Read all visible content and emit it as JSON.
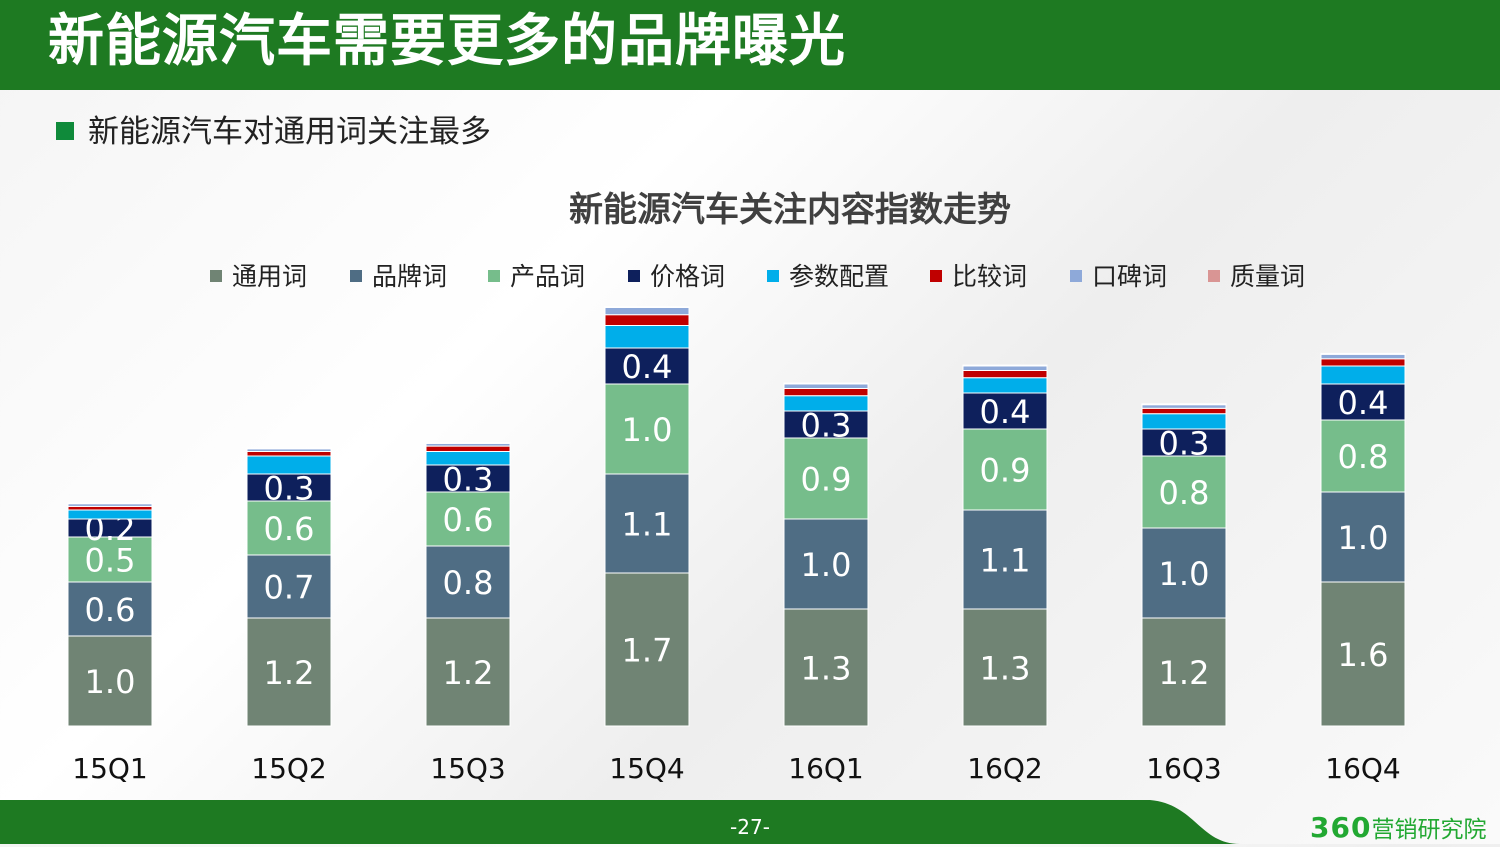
{
  "header": {
    "title": "新能源汽车需要更多的品牌曝光"
  },
  "bullet": {
    "text": "新能源汽车对通用词关注最多"
  },
  "footer": {
    "page": "-27-",
    "brand_number": "360",
    "brand_text": "营销研究院"
  },
  "colors": {
    "header_bg": "#1e7a22",
    "bullet": "#0f8a3a",
    "series": [
      "#708474",
      "#4f6d84",
      "#76bd8b",
      "#0e205c",
      "#00aeea",
      "#c00000",
      "#8ea9d9",
      "#d99594"
    ]
  },
  "chart_data": {
    "type": "bar",
    "stacked": true,
    "title": "新能源汽车关注内容指数走势",
    "xlabel": "",
    "ylabel": "",
    "legend_position": "top",
    "grid": false,
    "categories": [
      "15Q1",
      "15Q2",
      "15Q3",
      "15Q4",
      "16Q1",
      "16Q2",
      "16Q3",
      "16Q4"
    ],
    "series": [
      {
        "name": "通用词",
        "values": [
          1.0,
          1.2,
          1.2,
          1.7,
          1.3,
          1.3,
          1.2,
          1.6
        ],
        "show_labels": true
      },
      {
        "name": "品牌词",
        "values": [
          0.6,
          0.7,
          0.8,
          1.1,
          1.0,
          1.1,
          1.0,
          1.0
        ],
        "show_labels": true
      },
      {
        "name": "产品词",
        "values": [
          0.5,
          0.6,
          0.6,
          1.0,
          0.9,
          0.9,
          0.8,
          0.8
        ],
        "show_labels": true
      },
      {
        "name": "价格词",
        "values": [
          0.2,
          0.3,
          0.3,
          0.4,
          0.3,
          0.4,
          0.3,
          0.4
        ],
        "show_labels": true
      },
      {
        "name": "参数配置",
        "values": [
          0.1,
          0.2,
          0.15,
          0.25,
          0.17,
          0.17,
          0.17,
          0.2
        ],
        "show_labels": false
      },
      {
        "name": "比较词",
        "values": [
          0.04,
          0.05,
          0.06,
          0.12,
          0.08,
          0.08,
          0.06,
          0.08
        ],
        "show_labels": false
      },
      {
        "name": "口碑词",
        "values": [
          0.03,
          0.03,
          0.03,
          0.08,
          0.05,
          0.05,
          0.04,
          0.05
        ],
        "show_labels": false
      },
      {
        "name": "质量词",
        "values": [
          0.01,
          0.01,
          0.01,
          0.01,
          0.01,
          0.01,
          0.01,
          0.01
        ],
        "show_labels": false
      }
    ]
  }
}
